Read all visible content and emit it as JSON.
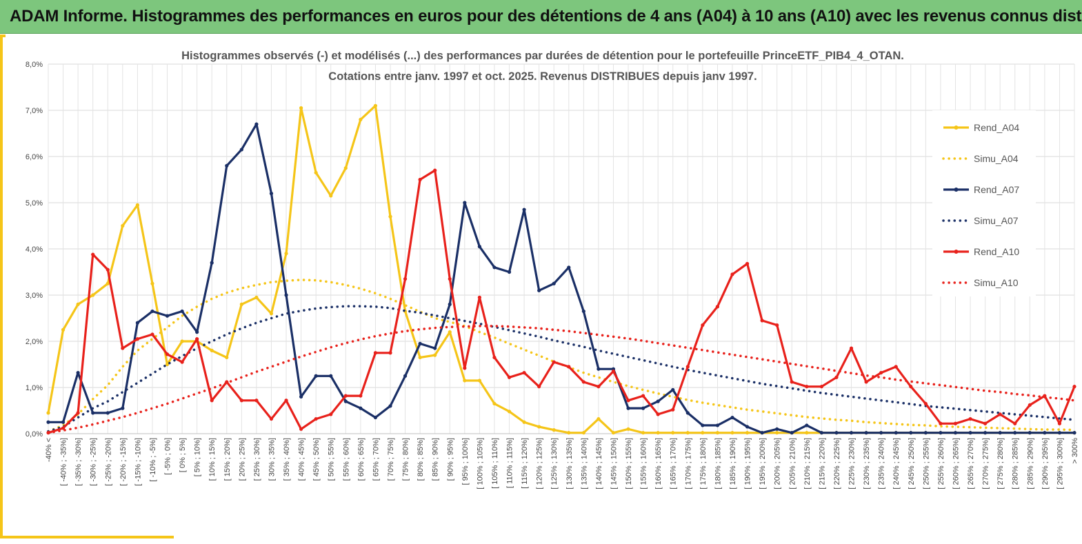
{
  "banner": {
    "title": "ADAM Informe. Histogrammes des performances en euros pour des détentions de 4 ans (A04) à 10 ans (A10) avec les revenus connus distribués",
    "background": "#7dc67d"
  },
  "chart_data": {
    "type": "line",
    "title_lines": [
      "Histogrammes observés (-) et modélisés (...) des performances par durées de détention pour le portefeuille PrinceETF_PIB4_4_OTAN.",
      "Cotations entre janv. 1997 et oct. 2025. Revenus DISTRIBUES depuis janv 1997."
    ],
    "ylim": [
      0,
      8
    ],
    "y_ticks": [
      "0,0%",
      "1,0%",
      "2,0%",
      "3,0%",
      "4,0%",
      "5,0%",
      "6,0%",
      "7,0%",
      "8,0%"
    ],
    "grid": true,
    "legend_position": "right",
    "categories": [
      "-40% <",
      "[ -40% ; -35%]",
      "[ -35% ; -30%]",
      "[ -30% ; -25%]",
      "[ -25% ; -20%]",
      "[ -20% ; -15%]",
      "[ -15% ; -10%]",
      "[ -10% ; -5%]",
      "[ -5% ; 0%]",
      "[ 0% ; 5%]",
      "[ 5% ; 10%]",
      "[ 10% ; 15%]",
      "[ 15% ; 20%]",
      "[ 20% ; 25%]",
      "[ 25% ; 30%]",
      "[ 30% ; 35%]",
      "[ 35% ; 40%]",
      "[ 40% ; 45%]",
      "[ 45% ; 50%]",
      "[ 50% ; 55%]",
      "[ 55% ; 60%]",
      "[ 60% ; 65%]",
      "[ 65% ; 70%]",
      "[ 70% ; 75%]",
      "[ 75% ; 80%]",
      "[ 80% ; 85%]",
      "[ 85% ; 90%]",
      "[ 90% ; 95%]",
      "[ 95% ; 100%]",
      "[ 100% ; 105%]",
      "[ 105% ; 110%]",
      "[ 110% ; 115%]",
      "[ 115% ; 120%]",
      "[ 120% ; 125%]",
      "[ 125% ; 130%]",
      "[ 130% ; 135%]",
      "[ 135% ; 140%]",
      "[ 140% ; 145%]",
      "[ 145% ; 150%]",
      "[ 150% ; 155%]",
      "[ 155% ; 160%]",
      "[ 160% ; 165%]",
      "[ 165% ; 170%]",
      "[ 170% ; 175%]",
      "[ 175% ; 180%]",
      "[ 180% ; 185%]",
      "[ 185% ; 190%]",
      "[ 190% ; 195%]",
      "[ 195% ; 200%]",
      "[ 200% ; 205%]",
      "[ 205% ; 210%]",
      "[ 210% ; 215%]",
      "[ 215% ; 220%]",
      "[ 220% ; 225%]",
      "[ 225% ; 230%]",
      "[ 230% ; 235%]",
      "[ 235% ; 240%]",
      "[ 240% ; 245%]",
      "[ 245% ; 250%]",
      "[ 250% ; 255%]",
      "[ 255% ; 260%]",
      "[ 260% ; 265%]",
      "[ 265% ; 270%]",
      "[ 270% ; 275%]",
      "[ 275% ; 280%]",
      "[ 280% ; 285%]",
      "[ 285% ; 290%]",
      "[ 290% ; 295%]",
      "[ 295% ; 300%]",
      "> 300%"
    ],
    "series": [
      {
        "name": "Rend_A04",
        "style": "solid",
        "color": "#f5c518",
        "values": [
          0.45,
          2.25,
          2.8,
          3.0,
          3.25,
          4.5,
          4.95,
          3.25,
          1.5,
          2.0,
          2.0,
          1.8,
          1.65,
          2.8,
          2.95,
          2.6,
          3.9,
          7.05,
          5.65,
          5.15,
          5.75,
          6.8,
          7.1,
          4.7,
          2.65,
          1.65,
          1.7,
          2.2,
          1.15,
          1.15,
          0.65,
          0.48,
          0.25,
          0.15,
          0.08,
          0.02,
          0.02,
          0.32,
          0.02,
          0.1,
          0.02,
          0.02,
          0.02,
          0.02,
          0.02,
          0.02,
          0.02,
          0.02,
          0.02,
          0.02,
          0.02,
          0.02,
          0.02,
          0.02,
          0.02,
          0.02,
          0.02,
          0.02,
          0.02,
          0.02,
          0.02,
          0.02,
          0.02,
          0.02,
          0.02,
          0.02,
          0.02,
          0.02,
          0.02,
          0.02
        ]
      },
      {
        "name": "Simu_A04",
        "style": "dotted",
        "color": "#f5c518",
        "values": [
          0.05,
          0.18,
          0.42,
          0.75,
          1.05,
          1.45,
          1.8,
          2.05,
          2.3,
          2.55,
          2.75,
          2.92,
          3.05,
          3.15,
          3.22,
          3.28,
          3.31,
          3.33,
          3.32,
          3.28,
          3.22,
          3.14,
          3.04,
          2.92,
          2.78,
          2.64,
          2.5,
          2.42,
          2.33,
          2.2,
          2.08,
          1.95,
          1.82,
          1.69,
          1.56,
          1.44,
          1.32,
          1.22,
          1.12,
          1.03,
          0.95,
          0.87,
          0.8,
          0.73,
          0.67,
          0.62,
          0.57,
          0.52,
          0.48,
          0.44,
          0.4,
          0.36,
          0.33,
          0.3,
          0.28,
          0.25,
          0.23,
          0.21,
          0.19,
          0.18,
          0.16,
          0.15,
          0.14,
          0.13,
          0.12,
          0.11,
          0.1,
          0.09,
          0.09,
          0.08
        ]
      },
      {
        "name": "Rend_A07",
        "style": "solid",
        "color": "#1a2f66",
        "values": [
          0.25,
          0.25,
          1.32,
          0.45,
          0.45,
          0.55,
          2.4,
          2.65,
          2.55,
          2.65,
          2.2,
          3.7,
          5.8,
          6.15,
          6.7,
          5.2,
          3.0,
          0.8,
          1.25,
          1.25,
          0.7,
          0.55,
          0.35,
          0.6,
          1.25,
          1.95,
          1.85,
          2.8,
          5.0,
          4.05,
          3.6,
          3.5,
          4.85,
          3.1,
          3.25,
          3.6,
          2.65,
          1.4,
          1.4,
          0.55,
          0.55,
          0.7,
          0.95,
          0.45,
          0.18,
          0.18,
          0.35,
          0.15,
          0.02,
          0.1,
          0.02,
          0.18,
          0.02,
          0.02,
          0.02,
          0.02,
          0.02,
          0.02,
          0.02,
          0.02,
          0.02,
          0.02,
          0.02,
          0.02,
          0.02,
          0.02,
          0.02,
          0.02,
          0.02,
          0.02
        ]
      },
      {
        "name": "Simu_A07",
        "style": "dotted",
        "color": "#1a2f66",
        "values": [
          0.05,
          0.15,
          0.35,
          0.55,
          0.7,
          0.9,
          1.1,
          1.3,
          1.5,
          1.68,
          1.85,
          2.0,
          2.15,
          2.28,
          2.4,
          2.5,
          2.6,
          2.66,
          2.71,
          2.74,
          2.76,
          2.76,
          2.75,
          2.72,
          2.66,
          2.62,
          2.56,
          2.5,
          2.44,
          2.38,
          2.31,
          2.24,
          2.17,
          2.1,
          2.02,
          1.95,
          1.88,
          1.8,
          1.73,
          1.66,
          1.59,
          1.52,
          1.45,
          1.38,
          1.32,
          1.26,
          1.2,
          1.14,
          1.08,
          1.03,
          0.98,
          0.93,
          0.88,
          0.84,
          0.8,
          0.76,
          0.72,
          0.68,
          0.64,
          0.6,
          0.57,
          0.54,
          0.51,
          0.48,
          0.45,
          0.42,
          0.39,
          0.36,
          0.33,
          0.3
        ]
      },
      {
        "name": "Rend_A10",
        "style": "solid",
        "color": "#e8211b",
        "values": [
          0.02,
          0.12,
          0.45,
          3.88,
          3.55,
          1.85,
          2.05,
          2.15,
          1.72,
          1.55,
          2.05,
          0.72,
          1.12,
          0.72,
          0.72,
          0.32,
          0.72,
          0.1,
          0.32,
          0.42,
          0.82,
          0.82,
          1.75,
          1.75,
          3.35,
          5.5,
          5.7,
          3.35,
          1.42,
          2.95,
          1.65,
          1.22,
          1.32,
          1.02,
          1.55,
          1.45,
          1.12,
          1.02,
          1.35,
          0.72,
          0.82,
          0.42,
          0.52,
          1.45,
          2.35,
          2.75,
          3.45,
          3.68,
          2.45,
          2.35,
          1.12,
          1.02,
          1.02,
          1.22,
          1.85,
          1.12,
          1.32,
          1.45,
          1.02,
          0.65,
          0.22,
          0.22,
          0.32,
          0.22,
          0.42,
          0.22,
          0.62,
          0.82,
          0.22,
          1.02
        ]
      },
      {
        "name": "Simu_A10",
        "style": "dotted",
        "color": "#e8211b",
        "values": [
          0.02,
          0.07,
          0.13,
          0.2,
          0.28,
          0.36,
          0.45,
          0.55,
          0.65,
          0.76,
          0.87,
          0.98,
          1.1,
          1.22,
          1.34,
          1.45,
          1.56,
          1.67,
          1.77,
          1.87,
          1.96,
          2.04,
          2.11,
          2.17,
          2.22,
          2.26,
          2.29,
          2.31,
          2.32,
          2.33,
          2.33,
          2.32,
          2.3,
          2.28,
          2.25,
          2.22,
          2.18,
          2.14,
          2.1,
          2.06,
          2.01,
          1.96,
          1.91,
          1.86,
          1.81,
          1.76,
          1.71,
          1.66,
          1.61,
          1.56,
          1.51,
          1.46,
          1.41,
          1.36,
          1.31,
          1.26,
          1.22,
          1.17,
          1.13,
          1.09,
          1.05,
          1.01,
          0.97,
          0.93,
          0.9,
          0.86,
          0.83,
          0.79,
          0.76,
          0.72
        ]
      }
    ]
  }
}
